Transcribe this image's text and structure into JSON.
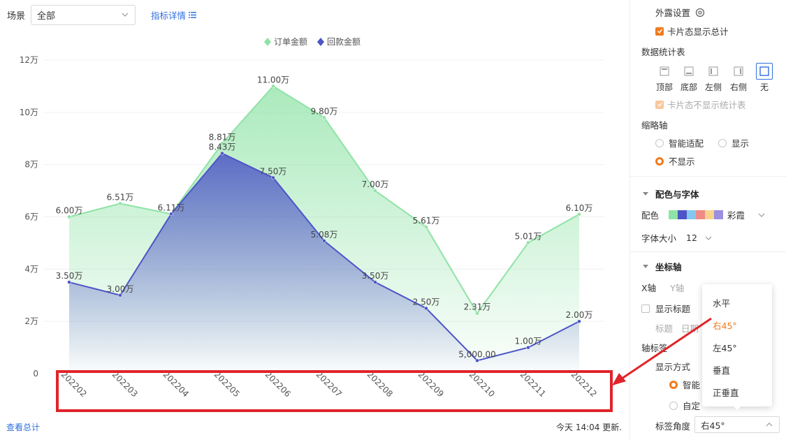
{
  "toolbar": {
    "scene_label": "场景",
    "scene_value": "全部",
    "metric_link": "指标详情"
  },
  "footer": {
    "view_total": "查看总计",
    "updated": "今天 14:04 更新."
  },
  "chart_data": {
    "type": "area",
    "categories": [
      "202202",
      "202203",
      "202204",
      "202205",
      "202206",
      "202207",
      "202208",
      "202209",
      "202210",
      "202211",
      "202212"
    ],
    "series": [
      {
        "name": "订单金额",
        "color": "#8fe3a6",
        "values": [
          60000,
          65100,
          61100,
          88100,
          110000,
          98000,
          70000,
          56100,
          23100,
          50100,
          61000
        ],
        "labels": [
          "6.00万",
          "6.51万",
          "6.11万",
          "8.81万",
          "11.00万",
          "9.80万",
          "7.00万",
          "5.61万",
          "2.31万",
          "5.01万",
          "6.10万"
        ]
      },
      {
        "name": "回款金额",
        "color": "#4d55c6",
        "values": [
          35000,
          30000,
          61100,
          84300,
          75000,
          50800,
          35000,
          25000,
          5000,
          10000,
          20000
        ],
        "labels": [
          "3.50万",
          "3.00万",
          "",
          "8.43万",
          "7.50万",
          "5.08万",
          "3.50万",
          "2.50万",
          "5,000.00",
          "1.00万",
          "2.00万"
        ]
      }
    ],
    "y_ticks": [
      "0",
      "2万",
      "4万",
      "6万",
      "8万",
      "10万",
      "12万"
    ],
    "ylim": [
      0,
      120000
    ],
    "legend_position": "top",
    "x_label_rotation": "45° right"
  },
  "panel": {
    "exposure_settings": "外露设置",
    "card_show_total": "卡片态显示总计",
    "stats_table": "数据统计表",
    "positions": [
      "顶部",
      "底部",
      "左侧",
      "右侧",
      "无"
    ],
    "card_hide_table": "卡片态不显示统计表",
    "thumbnail_axis": "缩略轴",
    "smart_fit": "智能适配",
    "show": "显示",
    "hide": "不显示",
    "color_font": "配色与字体",
    "color_label": "配色",
    "palette_name": "彩霞",
    "palette": [
      "#8fe3a6",
      "#4d55c6",
      "#84c7f0",
      "#f08a84",
      "#f7d58e",
      "#9b8fe0"
    ],
    "font_size_label": "字体大小",
    "font_size_value": "12",
    "axis_section": "坐标轴",
    "x_axis_tab": "X轴",
    "y_axis_tab": "Y轴",
    "show_title": "显示标题",
    "title_label": "标题",
    "date_label": "日期",
    "axis_label": "轴标签",
    "display_mode": "显示方式",
    "smart_partial": "智能",
    "custom_partial": "自定",
    "label_angle": "标签角度",
    "label_angle_value": "右45°"
  },
  "popup": {
    "items": [
      "水平",
      "右45°",
      "左45°",
      "垂直",
      "正垂直"
    ],
    "active_index": 1
  }
}
